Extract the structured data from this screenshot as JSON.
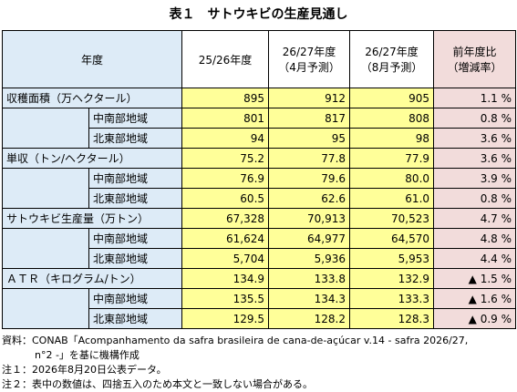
{
  "title": "表１　サトウキビの生産見通し",
  "header": {
    "year": "年度",
    "cols": [
      [
        "25/26年度"
      ],
      [
        "26/27年度",
        "（4月予測）"
      ],
      [
        "26/27年度",
        "（8月予測）"
      ],
      [
        "前年度比",
        "（増減率）"
      ]
    ]
  },
  "groups": [
    {
      "label": "収穫面積（万ヘクタール）",
      "values": [
        "895",
        "912",
        "905",
        "1.1 %"
      ],
      "subrows": [
        {
          "label": "中南部地域",
          "values": [
            "801",
            "817",
            "808",
            "0.8 %"
          ]
        },
        {
          "label": "北東部地域",
          "values": [
            "94",
            "95",
            "98",
            "3.6 %"
          ]
        }
      ]
    },
    {
      "label": "単収（トン/ヘクタール）",
      "values": [
        "75.2",
        "77.8",
        "77.9",
        "3.6 %"
      ],
      "subrows": [
        {
          "label": "中南部地域",
          "values": [
            "76.9",
            "79.6",
            "80.0",
            "3.9 %"
          ]
        },
        {
          "label": "北東部地域",
          "values": [
            "60.5",
            "62.6",
            "61.0",
            "0.8 %"
          ]
        }
      ]
    },
    {
      "label": "サトウキビ生産量（万トン）",
      "values": [
        "67,328",
        "70,913",
        "70,523",
        "4.7 %"
      ],
      "subrows": [
        {
          "label": "中南部地域",
          "values": [
            "61,624",
            "64,977",
            "64,570",
            "4.8 %"
          ]
        },
        {
          "label": "北東部地域",
          "values": [
            "5,704",
            "5,936",
            "5,953",
            "4.4 %"
          ]
        }
      ]
    },
    {
      "label": "ＡＴＲ（キログラム/トン）",
      "values": [
        "134.9",
        "133.8",
        "132.9",
        "▲ 1.5 %"
      ],
      "subrows": [
        {
          "label": "中南部地域",
          "values": [
            "135.5",
            "134.3",
            "133.3",
            "▲ 1.6 %"
          ]
        },
        {
          "label": "北東部地域",
          "values": [
            "129.5",
            "128.2",
            "128.3",
            "▲ 0.9 %"
          ]
        }
      ]
    }
  ],
  "notes": [
    "資料：CONAB「Acompanhamento da safra brasileira de cana-de-açúcar v.14 - safra 2026/27,",
    "n°2 -」を基に機構作成",
    "注１：2026年8月20日公表データ。",
    "注２：表中の数値は、四捨五入のため本文と一致しない場合がある。"
  ]
}
